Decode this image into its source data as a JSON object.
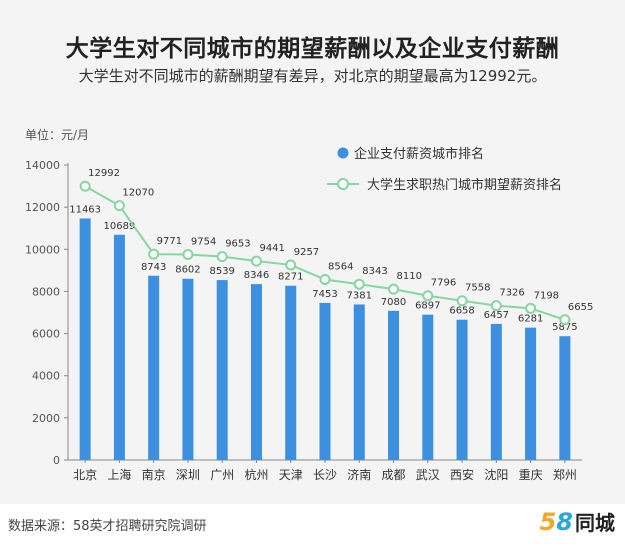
{
  "title": "大学生对不同城市的期望薪酬以及企业支付薪酬",
  "subtitle": "大学生对不同城市的薪酬期望有差异，对北京的期望最高为12992元。",
  "footer": {
    "source": "数据来源：58英才招聘研究院调研",
    "logo_num_a": "5",
    "logo_num_b": "8",
    "logo_text": "同城"
  },
  "colors": {
    "bar": "#3d8fe0",
    "line": "#86d6a0",
    "marker_fill": "#ffffff",
    "panel": "#f4f4f4"
  },
  "chart_data": {
    "type": "bar",
    "unit_label": "单位：元/月",
    "categories": [
      "北京",
      "上海",
      "南京",
      "深圳",
      "广州",
      "杭州",
      "天津",
      "长沙",
      "济南",
      "成都",
      "武汉",
      "西安",
      "沈阳",
      "重庆",
      "郑州"
    ],
    "ylim": [
      0,
      14000
    ],
    "yticks": [
      0,
      2000,
      4000,
      6000,
      8000,
      10000,
      12000,
      14000
    ],
    "grid": false,
    "legend_position": "top-right",
    "series": [
      {
        "name": "企业支付薪资城市排名",
        "type": "bar",
        "values": [
          11463,
          10689,
          8743,
          8602,
          8539,
          8346,
          8271,
          7453,
          7381,
          7080,
          6897,
          6658,
          6457,
          6281,
          5875
        ]
      },
      {
        "name": "大学生求职热门城市期望薪资排名",
        "type": "line",
        "values": [
          12992,
          12070,
          9771,
          9754,
          9653,
          9441,
          9257,
          8564,
          8343,
          8110,
          7796,
          7558,
          7326,
          7198,
          6655
        ]
      }
    ]
  }
}
